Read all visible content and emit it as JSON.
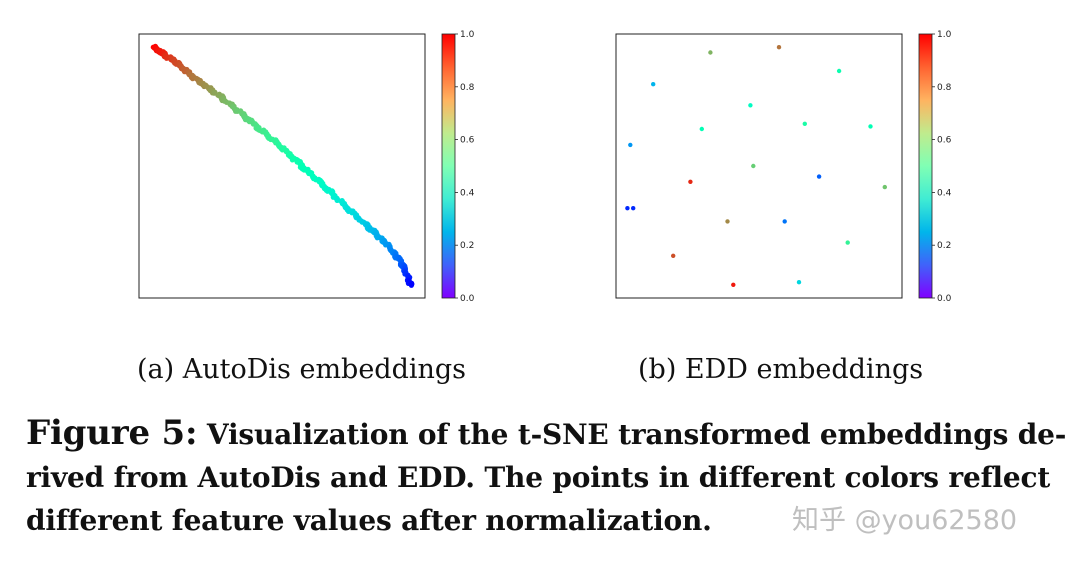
{
  "figure": {
    "label": "Figure 5:",
    "caption_lines": [
      "Visualization of the t-SNE transformed embeddings de-",
      "rived from AutoDis and EDD. The points in different colors reflect",
      "different feature values after normalization."
    ]
  },
  "watermark": "知乎 @you62580",
  "chart_data": [
    {
      "type": "scatter",
      "subcaption": "(a)  AutoDis embeddings",
      "colormap": "rainbow",
      "colorbar_ticks": [
        "0.0",
        "0.2",
        "0.4",
        "0.6",
        "0.8",
        "1.0"
      ],
      "colorbar_range": [
        0,
        1
      ],
      "axes": "hidden",
      "curve": {
        "description": "dense points along a descending curve, value decreasing from top-left to bottom-right",
        "x": [
          0.05,
          0.12,
          0.2,
          0.3,
          0.4,
          0.5,
          0.6,
          0.7,
          0.8,
          0.87,
          0.92,
          0.95
        ],
        "y": [
          0.95,
          0.9,
          0.83,
          0.75,
          0.66,
          0.57,
          0.47,
          0.37,
          0.27,
          0.2,
          0.13,
          0.05
        ],
        "value": [
          1.0,
          0.92,
          0.84,
          0.75,
          0.66,
          0.57,
          0.48,
          0.38,
          0.28,
          0.2,
          0.12,
          0.0
        ]
      }
    },
    {
      "type": "scatter",
      "subcaption": "(b)  EDD embeddings",
      "colormap": "rainbow",
      "colorbar_ticks": [
        "0.0",
        "0.2",
        "0.4",
        "0.6",
        "0.8",
        "1.0"
      ],
      "colorbar_range": [
        0,
        1
      ],
      "axes": "hidden",
      "points": {
        "x": [
          0.13,
          0.33,
          0.57,
          0.78,
          0.05,
          0.47,
          0.3,
          0.66,
          0.89,
          0.06,
          0.48,
          0.26,
          0.71,
          0.94,
          0.04,
          0.39,
          0.59,
          0.81,
          0.2,
          0.41,
          0.64
        ],
        "y": [
          0.81,
          0.93,
          0.95,
          0.86,
          0.58,
          0.73,
          0.64,
          0.66,
          0.65,
          0.34,
          0.5,
          0.44,
          0.46,
          0.42,
          0.34,
          0.29,
          0.29,
          0.21,
          0.16,
          0.05,
          0.06
        ],
        "value": [
          0.25,
          0.75,
          0.85,
          0.52,
          0.2,
          0.45,
          0.5,
          0.55,
          0.5,
          0.05,
          0.7,
          0.95,
          0.12,
          0.72,
          0.05,
          0.82,
          0.15,
          0.6,
          0.9,
          0.97,
          0.32
        ]
      }
    }
  ]
}
